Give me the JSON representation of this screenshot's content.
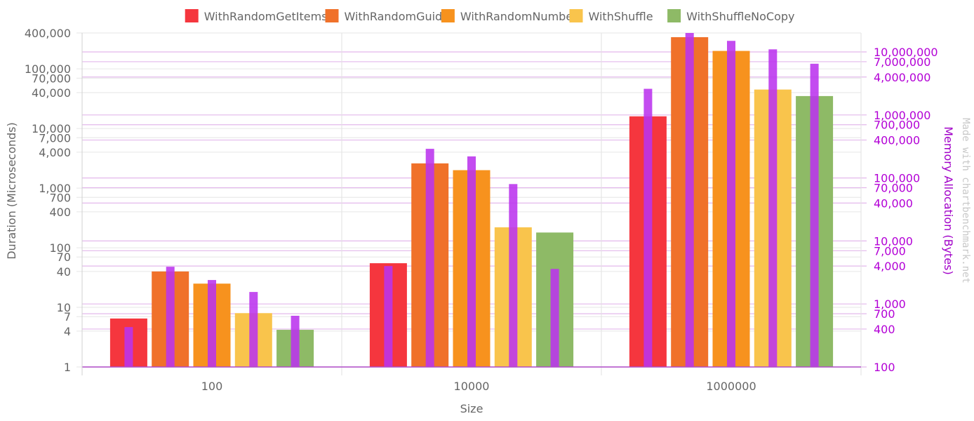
{
  "chart_data": {
    "type": "bar",
    "categories": [
      "100",
      "10000",
      "1000000"
    ],
    "xlabel": "Size",
    "ylabel": "Duration (Microseconds)",
    "y2label": "Memory Allocation (Bytes)",
    "yscale": "log",
    "ylim": [
      1,
      400000
    ],
    "y2lim": [
      100,
      20000000
    ],
    "yticks": [
      1,
      4,
      7,
      10,
      40,
      70,
      100,
      400,
      700,
      1000,
      4000,
      7000,
      10000,
      40000,
      70000,
      100000,
      400000
    ],
    "ytick_labels": [
      "1",
      "4",
      "7",
      "10",
      "40",
      "70",
      "100",
      "400",
      "700",
      "1,000",
      "4,000",
      "7,000",
      "10,000",
      "40,000",
      "70,000",
      "100,000",
      "400,000"
    ],
    "y2ticks": [
      100,
      400,
      700,
      1000,
      4000,
      7000,
      10000,
      40000,
      70000,
      100000,
      400000,
      700000,
      1000000,
      4000000,
      7000000,
      10000000
    ],
    "y2tick_labels": [
      "100",
      "400",
      "700",
      "1,000",
      "4,000",
      "7,000",
      "10,000",
      "40,000",
      "70,000",
      "100,000",
      "400,000",
      "700,000",
      "1,000,000",
      "4,000,000",
      "7,000,000",
      "10,000,000"
    ],
    "legend_position": "top",
    "grid": true,
    "series": [
      {
        "name": "WithRandomGetItems",
        "color": "#f5363e",
        "values": [
          6.5,
          55,
          16000
        ]
      },
      {
        "name": "WithRandomGuid",
        "color": "#f0712a",
        "values": [
          40,
          2600,
          340000
        ]
      },
      {
        "name": "WithRandomNumber",
        "color": "#f7921e",
        "values": [
          25,
          2000,
          200000
        ]
      },
      {
        "name": "WithShuffle",
        "color": "#f9c44c",
        "values": [
          8,
          220,
          45000
        ]
      },
      {
        "name": "WithShuffleNoCopy",
        "color": "#8eba66",
        "values": [
          4.2,
          180,
          35000
        ]
      }
    ],
    "memory_series": {
      "color": "#bb33ee",
      "values": [
        [
          430,
          4000,
          2600000
        ],
        [
          3900,
          290000,
          20000000
        ],
        [
          2400,
          220000,
          15000000
        ],
        [
          1550,
          80000,
          11000000
        ],
        [
          650,
          3600,
          6500000
        ]
      ]
    },
    "watermark": "Made with chartbenchmark.net"
  }
}
